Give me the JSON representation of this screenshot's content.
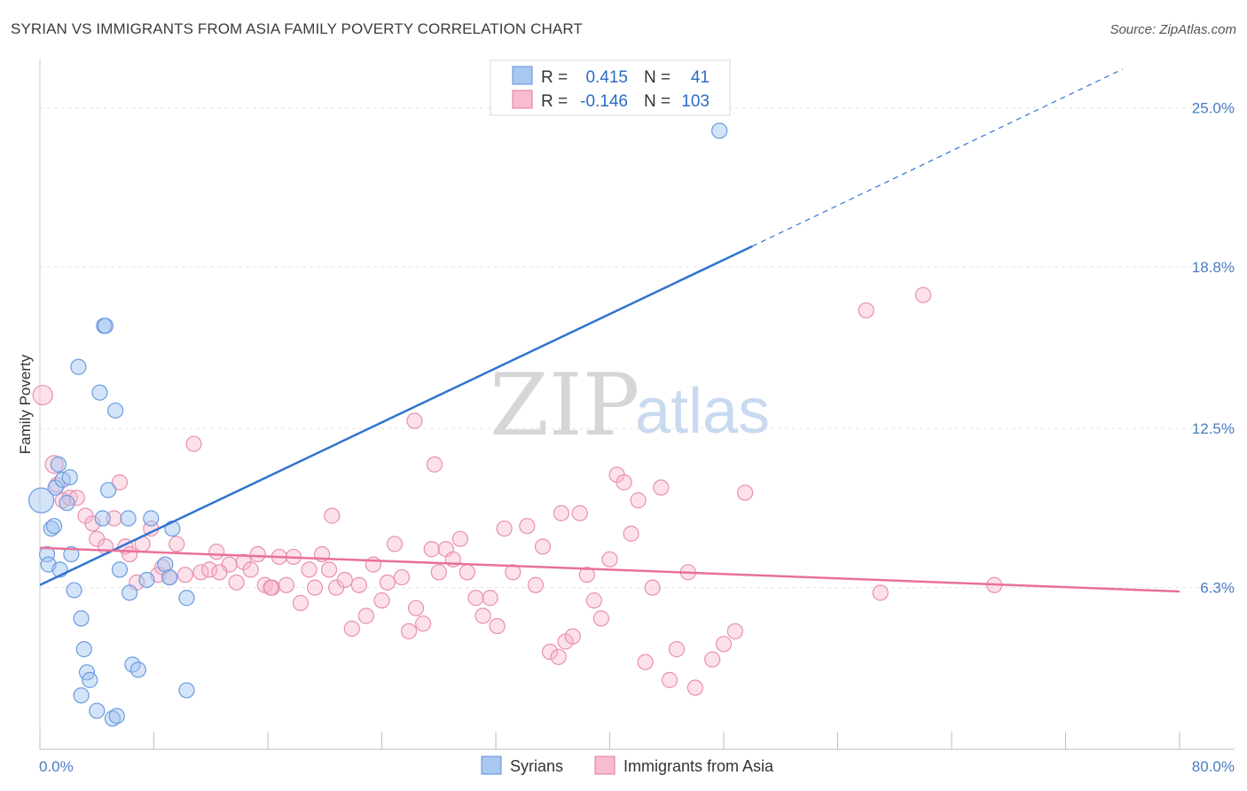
{
  "header": {
    "title": "SYRIAN VS IMMIGRANTS FROM ASIA FAMILY POVERTY CORRELATION CHART",
    "source": "Source: ZipAtlas.com"
  },
  "watermark": {
    "part1": "ZIP",
    "part2": "atlas"
  },
  "legend": {
    "r_label": "R =",
    "n_label": "N =",
    "series": [
      {
        "name": "Syrians",
        "r": "0.415",
        "n": "41",
        "fill": "#a9c8f0",
        "stroke": "#5b8fd6"
      },
      {
        "name": "Immigrants from Asia",
        "r": "-0.146",
        "n": "103",
        "fill": "#f7bcd0",
        "stroke": "#e0789f"
      }
    ]
  },
  "colors": {
    "blue_line": "#2f74d0",
    "pink_line": "#e8709a",
    "blue_point_fill": "rgba(160,196,240,0.45)",
    "blue_point_stroke": "#6b9be0",
    "pink_point_fill": "rgba(247,180,204,0.40)",
    "pink_point_stroke": "#e890b0",
    "grid": "#e4e4e4",
    "tick_label": "#4a7cc4"
  },
  "chart_data": {
    "type": "scatter",
    "title": "SYRIAN VS IMMIGRANTS FROM ASIA FAMILY POVERTY CORRELATION CHART",
    "xlabel": "",
    "ylabel": "Family Poverty",
    "xlim": [
      0,
      80
    ],
    "ylim": [
      0,
      26.5
    ],
    "x_tick_labels": [
      "0.0%",
      "80.0%"
    ],
    "y_ticks": [
      6.3,
      12.5,
      18.8,
      25.0
    ],
    "y_tick_labels": [
      "6.3%",
      "12.5%",
      "18.8%",
      "25.0%"
    ],
    "grid": true,
    "legend_position": "top-center",
    "series": [
      {
        "name": "Syrians",
        "r": 0.415,
        "n": 41,
        "trend": {
          "x0": 0,
          "y0": 6.4,
          "x1": 50,
          "y1": 19.6,
          "dashed_to_x": 76,
          "dashed_to_y": 26.5
        },
        "points": [
          [
            0.1,
            9.7
          ],
          [
            0.5,
            7.6
          ],
          [
            0.6,
            7.2
          ],
          [
            0.8,
            8.6
          ],
          [
            1.0,
            8.7
          ],
          [
            1.1,
            10.2
          ],
          [
            1.3,
            11.1
          ],
          [
            1.4,
            7.0
          ],
          [
            1.6,
            10.5
          ],
          [
            1.9,
            9.6
          ],
          [
            2.1,
            10.6
          ],
          [
            2.2,
            7.6
          ],
          [
            2.4,
            6.2
          ],
          [
            2.7,
            14.9
          ],
          [
            2.9,
            5.1
          ],
          [
            3.1,
            3.9
          ],
          [
            3.3,
            3.0
          ],
          [
            3.5,
            2.7
          ],
          [
            2.9,
            2.1
          ],
          [
            4.0,
            1.5
          ],
          [
            4.2,
            13.9
          ],
          [
            4.4,
            9.0
          ],
          [
            4.5,
            16.5
          ],
          [
            4.6,
            16.5
          ],
          [
            4.8,
            10.1
          ],
          [
            5.1,
            1.2
          ],
          [
            5.3,
            13.2
          ],
          [
            5.4,
            1.3
          ],
          [
            5.6,
            7.0
          ],
          [
            6.2,
            9.0
          ],
          [
            6.3,
            6.1
          ],
          [
            6.5,
            3.3
          ],
          [
            6.9,
            3.1
          ],
          [
            7.5,
            6.6
          ],
          [
            7.8,
            9.0
          ],
          [
            8.8,
            7.2
          ],
          [
            9.1,
            6.7
          ],
          [
            9.3,
            8.6
          ],
          [
            10.3,
            5.9
          ],
          [
            10.3,
            2.3
          ],
          [
            47.7,
            24.1
          ]
        ]
      },
      {
        "name": "Immigrants from Asia",
        "r": -0.146,
        "n": 103,
        "trend": {
          "x0": 0,
          "y0": 7.85,
          "x1": 80,
          "y1": 6.15
        },
        "points": [
          [
            0.2,
            13.8
          ],
          [
            1.0,
            11.1
          ],
          [
            1.2,
            10.3
          ],
          [
            1.6,
            9.7
          ],
          [
            2.1,
            9.8
          ],
          [
            2.6,
            9.8
          ],
          [
            3.2,
            9.1
          ],
          [
            3.7,
            8.8
          ],
          [
            4.0,
            8.2
          ],
          [
            4.6,
            7.9
          ],
          [
            5.2,
            9.0
          ],
          [
            5.6,
            10.4
          ],
          [
            6.0,
            7.9
          ],
          [
            6.3,
            7.6
          ],
          [
            6.8,
            6.5
          ],
          [
            7.2,
            8.0
          ],
          [
            7.8,
            8.6
          ],
          [
            8.3,
            6.8
          ],
          [
            8.6,
            7.1
          ],
          [
            9.1,
            6.7
          ],
          [
            9.6,
            8.0
          ],
          [
            10.2,
            6.8
          ],
          [
            10.8,
            11.9
          ],
          [
            11.3,
            6.9
          ],
          [
            11.9,
            7.0
          ],
          [
            12.4,
            7.7
          ],
          [
            13.3,
            7.2
          ],
          [
            13.8,
            6.5
          ],
          [
            14.3,
            7.3
          ],
          [
            14.8,
            7.0
          ],
          [
            15.3,
            7.6
          ],
          [
            15.8,
            6.4
          ],
          [
            16.3,
            6.3
          ],
          [
            16.8,
            7.5
          ],
          [
            17.3,
            6.4
          ],
          [
            17.8,
            7.5
          ],
          [
            18.3,
            5.7
          ],
          [
            18.9,
            7.0
          ],
          [
            19.3,
            6.3
          ],
          [
            19.8,
            7.6
          ],
          [
            20.3,
            7.0
          ],
          [
            20.8,
            6.3
          ],
          [
            21.4,
            6.6
          ],
          [
            21.9,
            4.7
          ],
          [
            22.4,
            6.4
          ],
          [
            22.9,
            5.2
          ],
          [
            23.4,
            7.2
          ],
          [
            24.0,
            5.8
          ],
          [
            24.4,
            6.5
          ],
          [
            24.9,
            8.0
          ],
          [
            25.4,
            6.7
          ],
          [
            25.9,
            4.6
          ],
          [
            26.4,
            5.5
          ],
          [
            26.9,
            4.9
          ],
          [
            27.5,
            7.8
          ],
          [
            28.0,
            6.9
          ],
          [
            28.5,
            7.8
          ],
          [
            29.0,
            7.4
          ],
          [
            29.5,
            8.2
          ],
          [
            30.0,
            6.9
          ],
          [
            30.6,
            5.9
          ],
          [
            31.1,
            5.2
          ],
          [
            31.6,
            5.9
          ],
          [
            32.1,
            4.8
          ],
          [
            32.6,
            8.6
          ],
          [
            33.2,
            6.9
          ],
          [
            34.2,
            8.7
          ],
          [
            34.8,
            6.4
          ],
          [
            35.3,
            7.9
          ],
          [
            35.8,
            3.8
          ],
          [
            36.4,
            3.6
          ],
          [
            36.9,
            4.2
          ],
          [
            37.4,
            4.4
          ],
          [
            37.9,
            9.2
          ],
          [
            38.4,
            6.8
          ],
          [
            38.9,
            5.8
          ],
          [
            39.4,
            5.1
          ],
          [
            40.0,
            7.4
          ],
          [
            40.5,
            10.7
          ],
          [
            41.0,
            10.4
          ],
          [
            41.5,
            8.4
          ],
          [
            42.0,
            9.7
          ],
          [
            42.5,
            3.4
          ],
          [
            43.0,
            6.3
          ],
          [
            43.6,
            10.2
          ],
          [
            44.2,
            2.7
          ],
          [
            44.7,
            3.9
          ],
          [
            45.5,
            6.9
          ],
          [
            46.0,
            2.4
          ],
          [
            47.2,
            3.5
          ],
          [
            48.0,
            4.1
          ],
          [
            48.8,
            4.6
          ],
          [
            49.5,
            10.0
          ],
          [
            26.3,
            12.8
          ],
          [
            27.7,
            11.1
          ],
          [
            58.0,
            17.1
          ],
          [
            59.0,
            6.1
          ],
          [
            62.0,
            17.7
          ],
          [
            67.0,
            6.4
          ],
          [
            20.5,
            9.1
          ],
          [
            16.2,
            6.3
          ],
          [
            36.6,
            9.2
          ],
          [
            12.6,
            6.9
          ]
        ]
      }
    ]
  }
}
